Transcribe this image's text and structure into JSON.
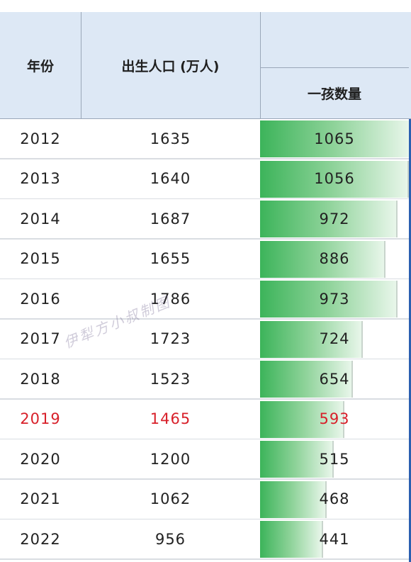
{
  "chart_data": {
    "type": "table",
    "columns": [
      "年份",
      "出生人口 (万人)",
      "一孩数量"
    ],
    "rows": [
      {
        "year": "2012",
        "births": 1635,
        "first_child": 1065
      },
      {
        "year": "2013",
        "births": 1640,
        "first_child": 1056
      },
      {
        "year": "2014",
        "births": 1687,
        "first_child": 972
      },
      {
        "year": "2015",
        "births": 1655,
        "first_child": 886
      },
      {
        "year": "2016",
        "births": 1786,
        "first_child": 973
      },
      {
        "year": "2017",
        "births": 1723,
        "first_child": 724
      },
      {
        "year": "2018",
        "births": 1523,
        "first_child": 654
      },
      {
        "year": "2019",
        "births": 1465,
        "first_child": 593
      },
      {
        "year": "2020",
        "births": 1200,
        "first_child": 515
      },
      {
        "year": "2021",
        "births": 1062,
        "first_child": 468
      },
      {
        "year": "2022",
        "births": 956,
        "first_child": 441
      }
    ],
    "highlight_year": "2019",
    "bar_column": "一孩数量",
    "bar_max": 1065
  },
  "watermark": "伊犁方小叔制图",
  "colors": {
    "header_bg": "#dde8f5",
    "highlight_text": "#d8202a",
    "bar_start": "#3cb45a",
    "bar_end": "#e8f6ea"
  }
}
